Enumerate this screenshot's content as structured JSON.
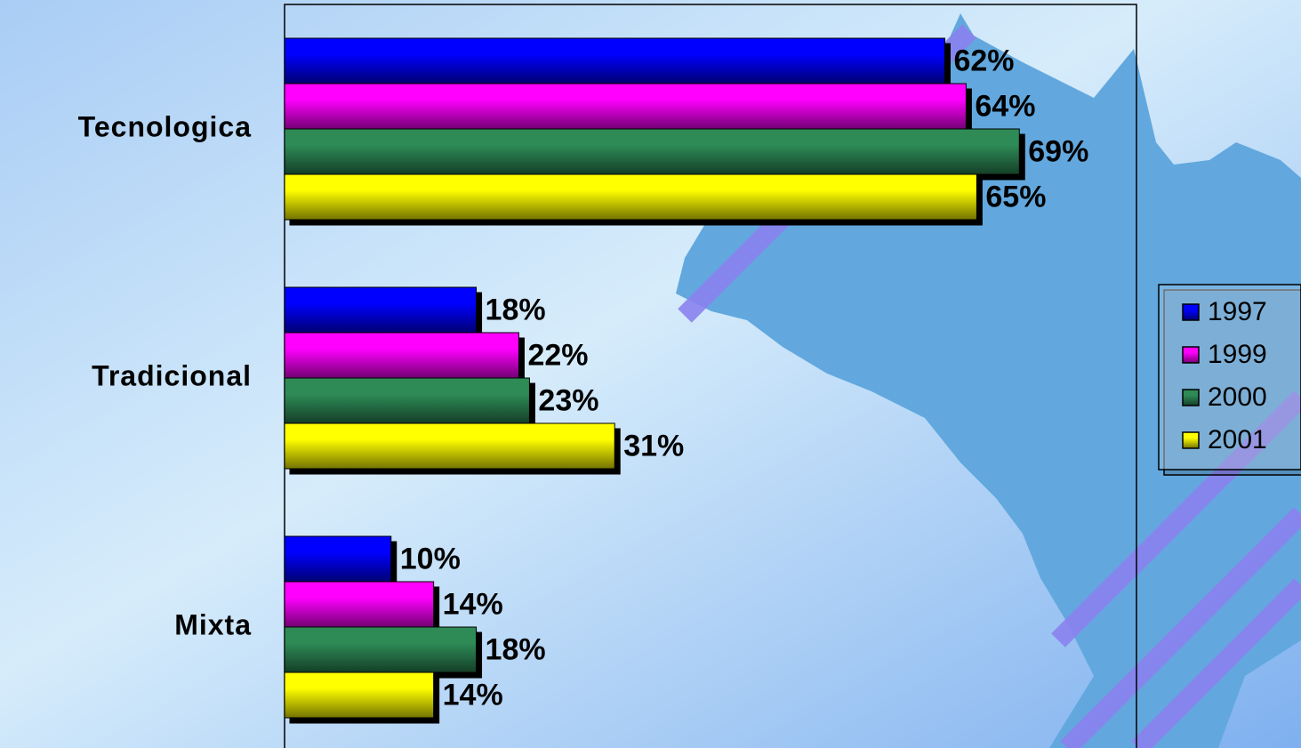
{
  "chart_data": {
    "type": "bar",
    "horizontal": true,
    "categories": [
      "Tecnologica",
      "Tradicional",
      "Mixta"
    ],
    "series": [
      {
        "name": "1997",
        "color": "#0000ff",
        "values": [
          62,
          18,
          10
        ],
        "value_labels": [
          "62%",
          "18%",
          "10%"
        ]
      },
      {
        "name": "1999",
        "color": "#ff00ff",
        "values": [
          64,
          22,
          14
        ],
        "value_labels": [
          "64%",
          "22%",
          "14%"
        ]
      },
      {
        "name": "2000",
        "color": "#2e8b57",
        "values": [
          69,
          23,
          18
        ],
        "value_labels": [
          "69%",
          "23%",
          "18%"
        ]
      },
      {
        "name": "2001",
        "color": "#ffff00",
        "values": [
          65,
          31,
          14
        ],
        "value_labels": [
          "65%",
          "31%",
          "14%"
        ]
      }
    ],
    "xlim": [
      0,
      80
    ],
    "legend": "right"
  }
}
